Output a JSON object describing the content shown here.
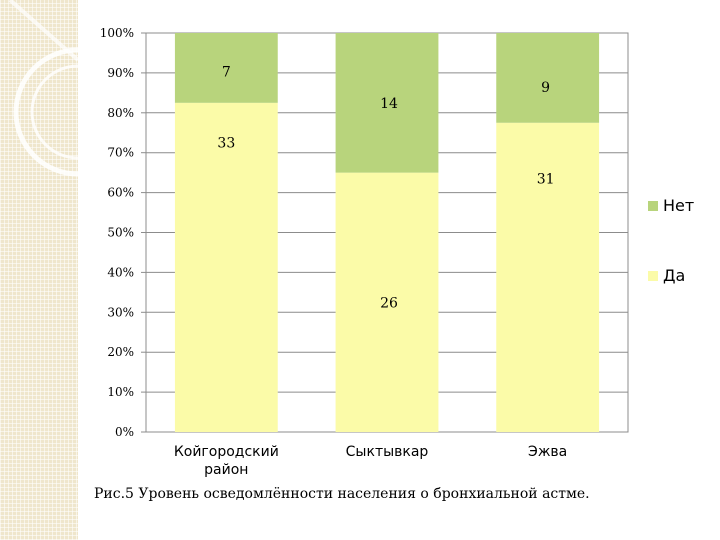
{
  "caption": "Рис.5 Уровень осведомлённости населения о бронхиальной астме.",
  "colors": {
    "background": "#ffffff",
    "side_strip": "#efe6cc"
  },
  "chart_data": {
    "type": "bar",
    "stacked": true,
    "normalized": true,
    "categories": [
      "Койгородский район",
      "Сыктывкар",
      "Эжва"
    ],
    "category_lines": [
      [
        "Койгородский",
        "район"
      ],
      [
        "Сыктывкар"
      ],
      [
        "Эжва"
      ]
    ],
    "series": [
      {
        "name": "Да",
        "values": [
          33,
          26,
          31
        ],
        "color": "#fbfba8"
      },
      {
        "name": "Нет",
        "values": [
          7,
          14,
          9
        ],
        "color": "#b8d47c"
      }
    ],
    "y_ticks": [
      "0%",
      "10%",
      "20%",
      "30%",
      "40%",
      "50%",
      "60%",
      "70%",
      "80%",
      "90%",
      "100%"
    ],
    "ylim": [
      0,
      100
    ],
    "grid": true,
    "legend": {
      "position": "right",
      "order": [
        "Нет",
        "Да"
      ]
    }
  }
}
